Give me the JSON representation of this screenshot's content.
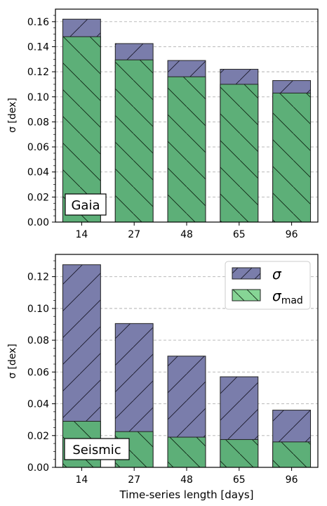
{
  "chart_data": [
    {
      "type": "bar",
      "panel_label": "Gaia",
      "categories": [
        "14",
        "27",
        "48",
        "65",
        "96"
      ],
      "series": [
        {
          "name": "σ",
          "values": [
            0.162,
            0.1425,
            0.129,
            0.122,
            0.113
          ]
        },
        {
          "name": "σ_mad",
          "values": [
            0.148,
            0.1295,
            0.116,
            0.11,
            0.103
          ]
        }
      ],
      "xlabel": "",
      "ylabel": "σ [dex]",
      "ylim": [
        0,
        0.17
      ],
      "yticks": [
        "0.00",
        "0.02",
        "0.04",
        "0.06",
        "0.08",
        "0.10",
        "0.12",
        "0.14",
        "0.16"
      ],
      "grid": "y, dashed",
      "legend": "none"
    },
    {
      "type": "bar",
      "panel_label": "Seismic",
      "categories": [
        "14",
        "27",
        "48",
        "65",
        "96"
      ],
      "series": [
        {
          "name": "σ",
          "values": [
            0.1275,
            0.0905,
            0.07,
            0.057,
            0.036
          ]
        },
        {
          "name": "σ_mad",
          "values": [
            0.029,
            0.0225,
            0.019,
            0.0175,
            0.016
          ]
        }
      ],
      "xlabel": "Time-series length [days]",
      "ylabel": "σ [dex]",
      "ylim": [
        0,
        0.134
      ],
      "yticks": [
        "0.00",
        "0.02",
        "0.04",
        "0.06",
        "0.08",
        "0.10",
        "0.12"
      ],
      "grid": "y, dashed",
      "legend": "top-right"
    }
  ],
  "legend": {
    "sigma_symbol": "σ",
    "sigma_mad_symbol": "σ",
    "sigma_mad_subscript": "mad"
  },
  "colors": {
    "sigma_fill": "#7a7dab",
    "sigma_mad_fill": "#5daf78",
    "legend_mad_fill": "#86d595",
    "edge": "#222222",
    "grid": "#b0b0b0"
  }
}
